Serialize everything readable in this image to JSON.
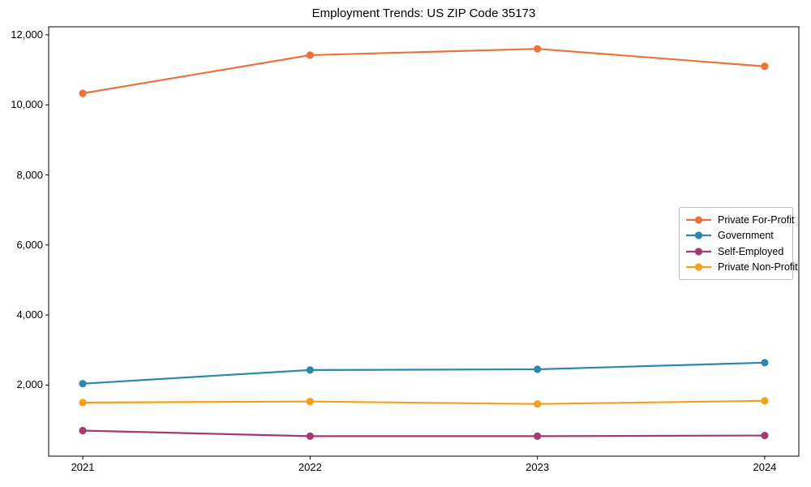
{
  "chart_data": {
    "type": "line",
    "title": "Employment Trends: US ZIP Code 35173",
    "xlabel": "",
    "ylabel": "",
    "categories": [
      2021,
      2022,
      2023,
      2024
    ],
    "x_tick_labels": [
      "2021",
      "2022",
      "2023",
      "2024"
    ],
    "series": [
      {
        "name": "Private For-Profit",
        "color": "#e8743b",
        "values": [
          10330,
          11420,
          11600,
          11100
        ]
      },
      {
        "name": "Government",
        "color": "#2e86ab",
        "values": [
          2040,
          2430,
          2450,
          2640
        ]
      },
      {
        "name": "Self-Employed",
        "color": "#a23b72",
        "values": [
          700,
          540,
          540,
          560
        ]
      },
      {
        "name": "Private Non-Profit",
        "color": "#f4a018",
        "values": [
          1500,
          1530,
          1460,
          1550
        ]
      }
    ],
    "y_ticks": [
      {
        "value": 2000,
        "label": "2,000"
      },
      {
        "value": 4000,
        "label": "4,000"
      },
      {
        "value": 6000,
        "label": "6,000"
      },
      {
        "value": 8000,
        "label": "8,000"
      },
      {
        "value": 10000,
        "label": "10,000"
      },
      {
        "value": 12000,
        "label": "12,000"
      }
    ],
    "xlim": [
      2020.85,
      2024.15
    ],
    "ylim": [
      -30,
      12230
    ],
    "grid": false,
    "legend_position": "center right",
    "axis_color": "#000000",
    "background_color": "#ffffff"
  }
}
